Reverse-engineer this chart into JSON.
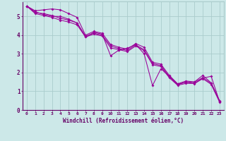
{
  "background_color": "#cce8e8",
  "line_color": "#990099",
  "grid_color": "#aacccc",
  "xlabel": "Windchill (Refroidissement éolien,°C)",
  "xlabel_color": "#660066",
  "tick_color": "#660066",
  "xlim": [
    -0.5,
    23.5
  ],
  "ylim": [
    0,
    5.8
  ],
  "yticks": [
    0,
    1,
    2,
    3,
    4,
    5
  ],
  "xticks": [
    0,
    1,
    2,
    3,
    4,
    5,
    6,
    7,
    8,
    9,
    10,
    11,
    12,
    13,
    14,
    15,
    16,
    17,
    18,
    19,
    20,
    21,
    22,
    23
  ],
  "lines": [
    [
      5.55,
      5.25,
      5.1,
      5.0,
      5.0,
      4.85,
      4.65,
      3.9,
      4.15,
      4.05,
      2.9,
      3.2,
      3.3,
      3.5,
      3.0,
      1.3,
      2.2,
      1.8,
      1.35,
      1.5,
      1.4,
      1.7,
      1.8,
      0.45
    ],
    [
      5.55,
      5.3,
      5.35,
      5.4,
      5.35,
      5.15,
      4.95,
      4.0,
      4.2,
      4.1,
      3.5,
      3.35,
      3.25,
      3.55,
      3.35,
      2.55,
      2.45,
      1.85,
      1.4,
      1.55,
      1.5,
      1.85,
      1.45,
      0.5
    ],
    [
      5.55,
      5.2,
      5.15,
      5.05,
      4.9,
      4.8,
      4.65,
      3.95,
      4.1,
      4.0,
      3.42,
      3.28,
      3.18,
      3.48,
      3.22,
      2.48,
      2.38,
      1.78,
      1.38,
      1.48,
      1.48,
      1.73,
      1.42,
      0.47
    ],
    [
      5.55,
      5.15,
      5.05,
      4.95,
      4.8,
      4.7,
      4.55,
      3.9,
      4.05,
      3.95,
      3.32,
      3.22,
      3.12,
      3.42,
      3.17,
      2.42,
      2.32,
      1.72,
      1.32,
      1.42,
      1.42,
      1.67,
      1.37,
      0.42
    ]
  ]
}
